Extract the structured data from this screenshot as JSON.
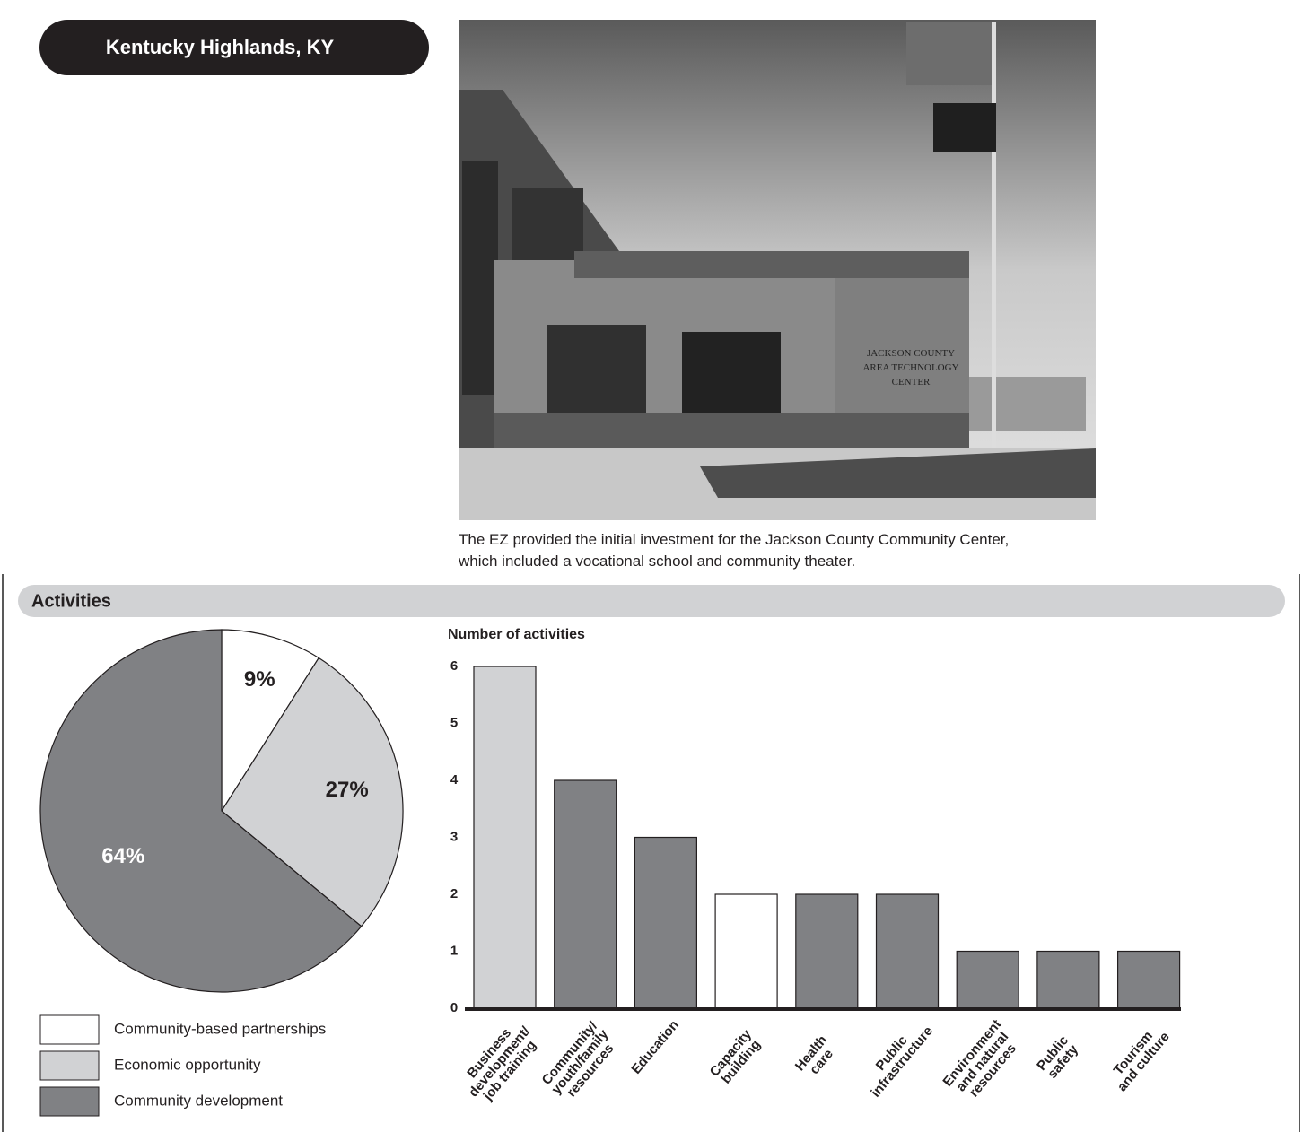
{
  "header": {
    "title": "Kentucky Highlands, KY"
  },
  "photo": {
    "caption": "The EZ provided the initial investment for the Jackson County Community Center, which included a vocational school and community theater.",
    "sign": "JACKSON COUNTY\nAREA TECHNOLOGY\nCENTER"
  },
  "section": {
    "title": "Activities"
  },
  "chart_data": [
    {
      "type": "pie",
      "categories": [
        "Community-based partnerships",
        "Economic opportunity",
        "Community development"
      ],
      "values": [
        9,
        27,
        64
      ],
      "value_labels": [
        "9%",
        "27%",
        "64%"
      ],
      "colors": [
        "#ffffff",
        "#d1d2d4",
        "#808184"
      ]
    },
    {
      "type": "bar",
      "y_label": "Number of activities",
      "categories": [
        "Business\ndevelopment/\njob training",
        "Community/\nyouth/family\nresources",
        "Education",
        "Capacity\nbuilding",
        "Health\ncare",
        "Public\ninfrastructure",
        "Environment\nand natural\nresources",
        "Public\nsafety",
        "Tourism\nand culture"
      ],
      "values": [
        6,
        4,
        3,
        2,
        2,
        2,
        1,
        1,
        1
      ],
      "colors": [
        "#d1d2d4",
        "#808184",
        "#808184",
        "#ffffff",
        "#808184",
        "#808184",
        "#808184",
        "#808184",
        "#808184"
      ],
      "ylim": [
        0,
        6
      ],
      "yticks": [
        0,
        1,
        2,
        3,
        4,
        5,
        6
      ]
    }
  ]
}
